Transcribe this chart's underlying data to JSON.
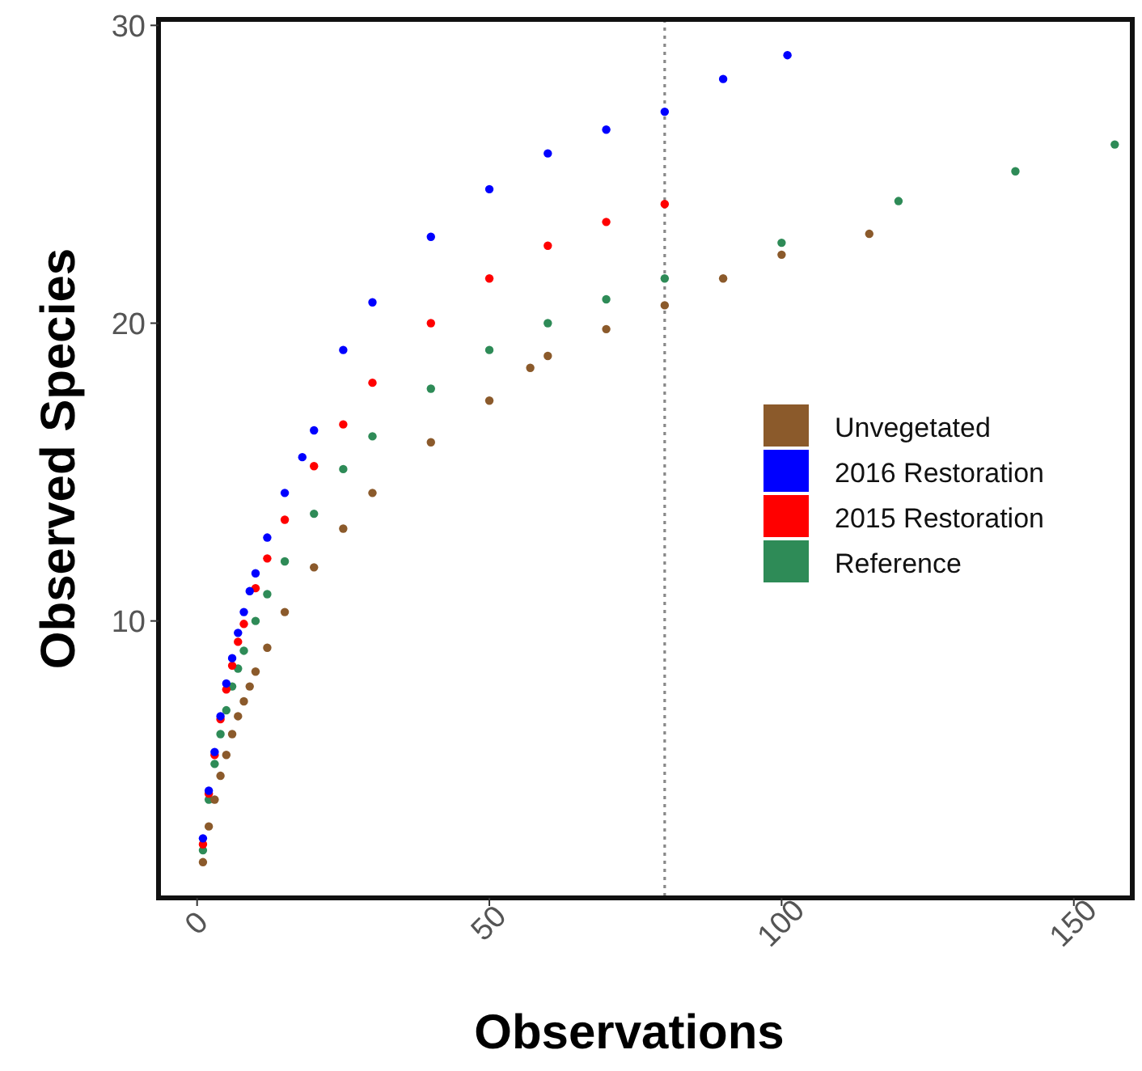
{
  "chart_data": {
    "type": "scatter",
    "xlabel": "Observations",
    "ylabel": "Observed Species",
    "xlim": [
      -6.6,
      160
    ],
    "ylim": [
      0.7,
      30.2
    ],
    "xticks": [
      0,
      50,
      100,
      150
    ],
    "yticks": [
      10,
      20,
      30
    ],
    "grid": false,
    "legend": "right",
    "marker": "circle",
    "ref_lines": [
      {
        "axis": "x",
        "value": 80,
        "line_style": "dotted",
        "color": "#888888"
      }
    ],
    "series": [
      {
        "name": "Unvegetated",
        "color": "#8b5a2b",
        "x": [
          1,
          2,
          3,
          4,
          5,
          6,
          7,
          8,
          9,
          10,
          12,
          15,
          20,
          25,
          30,
          40,
          50,
          57,
          60,
          70,
          80,
          90,
          100,
          115
        ],
        "values": [
          1.9,
          3.1,
          4.0,
          4.8,
          5.5,
          6.2,
          6.8,
          7.3,
          7.8,
          8.3,
          9.1,
          10.3,
          11.8,
          13.1,
          14.3,
          16.0,
          17.4,
          18.5,
          18.9,
          19.8,
          20.6,
          21.5,
          22.3,
          23.0
        ]
      },
      {
        "name": "2016 Restoration",
        "color": "#0000ff",
        "x": [
          1,
          2,
          3,
          4,
          5,
          6,
          7,
          8,
          9,
          10,
          12,
          15,
          18,
          20,
          25,
          30,
          40,
          50,
          60,
          70,
          80,
          90,
          101
        ],
        "values": [
          2.7,
          4.3,
          5.6,
          6.8,
          7.9,
          8.75,
          9.6,
          10.3,
          11.0,
          11.6,
          12.8,
          14.3,
          15.5,
          16.4,
          19.1,
          20.7,
          22.9,
          24.5,
          25.7,
          26.5,
          27.1,
          28.2,
          29.0
        ]
      },
      {
        "name": "2015 Restoration",
        "color": "#ff0000",
        "x": [
          1,
          2,
          3,
          4,
          5,
          6,
          7,
          8,
          10,
          12,
          15,
          20,
          25,
          30,
          40,
          50,
          60,
          70,
          80
        ],
        "values": [
          2.5,
          4.2,
          5.5,
          6.7,
          7.7,
          8.5,
          9.3,
          9.9,
          11.1,
          12.1,
          13.4,
          15.2,
          16.6,
          18.0,
          20.0,
          21.5,
          22.6,
          23.4,
          24.0
        ]
      },
      {
        "name": "Reference",
        "color": "#2e8b57",
        "x": [
          1,
          2,
          3,
          4,
          5,
          6,
          7,
          8,
          10,
          12,
          15,
          20,
          25,
          30,
          40,
          50,
          60,
          70,
          80,
          100,
          120,
          140,
          157
        ],
        "values": [
          2.3,
          4.0,
          5.2,
          6.2,
          7.0,
          7.8,
          8.4,
          9.0,
          10.0,
          10.9,
          12.0,
          13.6,
          15.1,
          16.2,
          17.8,
          19.1,
          20.0,
          20.8,
          21.5,
          22.7,
          24.1,
          25.1,
          26.0
        ]
      }
    ]
  }
}
